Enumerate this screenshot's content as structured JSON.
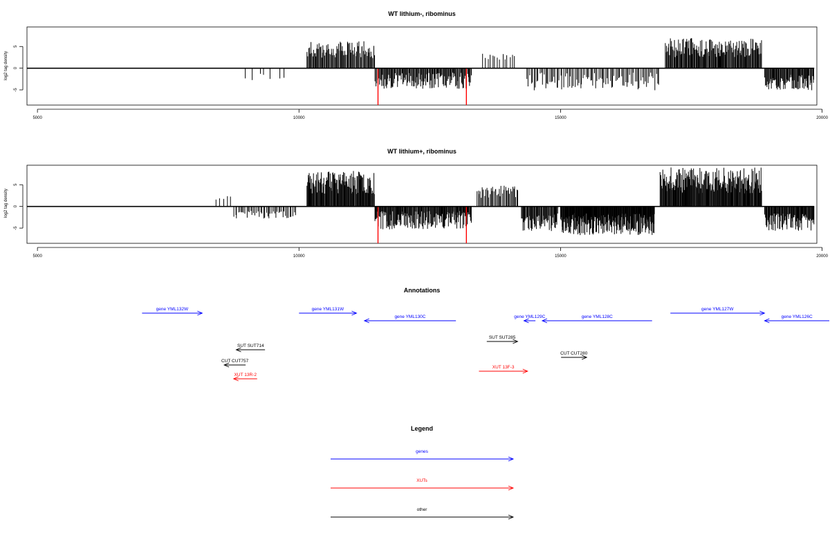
{
  "chart_data": [
    {
      "type": "bar",
      "title": "WT lithium-, ribominus",
      "ylabel": "log2 tag density",
      "xlim": [
        4800,
        19900
      ],
      "ylim": [
        -8.5,
        9.5
      ],
      "xticks": [
        5000,
        10000,
        15000,
        20000
      ],
      "yticks": [
        -5,
        0,
        5
      ],
      "grid": false,
      "baseline": {
        "x": [
          4800,
          19850
        ],
        "y": 0
      },
      "spikes": [
        {
          "x": [
            11510,
            13200
          ],
          "y": -8.5,
          "color": "#ff0000"
        }
      ],
      "segments": [
        {
          "x0": 8950,
          "x1": 9800,
          "n": 7,
          "ymin": -3.5,
          "ymax": -1.0,
          "seed": 11
        },
        {
          "x0": 10150,
          "x1": 11450,
          "n": 85,
          "ymin": 1.0,
          "ymax": 6.2,
          "seed": 12
        },
        {
          "x0": 11450,
          "x1": 13300,
          "n": 130,
          "ymin": -6.0,
          "ymax": -1.0,
          "seed": 13
        },
        {
          "x0": 13500,
          "x1": 14150,
          "n": 14,
          "ymin": 1.0,
          "ymax": 4.5,
          "seed": 14
        },
        {
          "x0": 14350,
          "x1": 16900,
          "n": 95,
          "ymin": -6.5,
          "ymax": -1.0,
          "seed": 15
        },
        {
          "x0": 17000,
          "x1": 18850,
          "n": 140,
          "ymin": 1.0,
          "ymax": 7.0,
          "seed": 16
        },
        {
          "x0": 18900,
          "x1": 19850,
          "n": 75,
          "ymin": -6.3,
          "ymax": -1.5,
          "seed": 17
        }
      ]
    },
    {
      "type": "bar",
      "title": "WT lithium+, ribominus",
      "ylabel": "log2 tag density",
      "xlim": [
        4800,
        19900
      ],
      "ylim": [
        -8.5,
        9.5
      ],
      "xticks": [
        5000,
        10000,
        15000,
        20000
      ],
      "yticks": [
        -5,
        0,
        5
      ],
      "grid": false,
      "baseline": {
        "x": [
          4800,
          19850
        ],
        "y": 0
      },
      "spikes": [
        {
          "x": [
            11510,
            13200
          ],
          "y": -8.5,
          "color": "#ff0000"
        }
      ],
      "segments": [
        {
          "x0": 8400,
          "x1": 8750,
          "n": 5,
          "ymin": 1.0,
          "ymax": 2.5,
          "seed": 21
        },
        {
          "x0": 8750,
          "x1": 9950,
          "n": 45,
          "ymin": -3.5,
          "ymax": -1.0,
          "seed": 22
        },
        {
          "x0": 10150,
          "x1": 11450,
          "n": 120,
          "ymin": 1.0,
          "ymax": 8.2,
          "seed": 23
        },
        {
          "x0": 11450,
          "x1": 13300,
          "n": 160,
          "ymin": -6.8,
          "ymax": -1.0,
          "seed": 24
        },
        {
          "x0": 13400,
          "x1": 14200,
          "n": 40,
          "ymin": 1.0,
          "ymax": 4.8,
          "seed": 25
        },
        {
          "x0": 14250,
          "x1": 14950,
          "n": 55,
          "ymin": -7.5,
          "ymax": -1.0,
          "seed": 26
        },
        {
          "x0": 15000,
          "x1": 16800,
          "n": 230,
          "ymin": -8.3,
          "ymax": -1.5,
          "seed": 27
        },
        {
          "x0": 16900,
          "x1": 18850,
          "n": 190,
          "ymin": 1.0,
          "ymax": 9.0,
          "seed": 28
        },
        {
          "x0": 18900,
          "x1": 19850,
          "n": 85,
          "ymin": -7.0,
          "ymax": -1.5,
          "seed": 29
        }
      ]
    }
  ],
  "annotations": {
    "title": "Annotations",
    "xlim": [
      4800,
      19900
    ],
    "features": [
      {
        "label": "gene YML132W",
        "kind": "gene",
        "color": "#0000ff",
        "start": 7000,
        "end": 8150,
        "dir": "+",
        "row": 0
      },
      {
        "label": "gene YML131W",
        "kind": "gene",
        "color": "#0000ff",
        "start": 10000,
        "end": 11100,
        "dir": "+",
        "row": 0
      },
      {
        "label": "gene YML130C",
        "kind": "gene",
        "color": "#0000ff",
        "start": 11250,
        "end": 13000,
        "dir": "-",
        "row": 1
      },
      {
        "label": "gene YML129C",
        "kind": "gene",
        "color": "#0000ff",
        "start": 14300,
        "end": 14520,
        "dir": "-",
        "row": 1
      },
      {
        "label": "gene YML128C",
        "kind": "gene",
        "color": "#0000ff",
        "start": 14650,
        "end": 16750,
        "dir": "-",
        "row": 1
      },
      {
        "label": "gene YML127W",
        "kind": "gene",
        "color": "#0000ff",
        "start": 17100,
        "end": 18900,
        "dir": "+",
        "row": 0
      },
      {
        "label": "gene YML126C",
        "kind": "gene",
        "color": "#0000ff",
        "start": 18900,
        "end": 21300,
        "dir": "-",
        "row": 1
      },
      {
        "label": "SUT SUT714",
        "kind": "other",
        "color": "#000000",
        "start": 8800,
        "end": 9350,
        "dir": "-",
        "row": 2
      },
      {
        "label": "SUT SUT285",
        "kind": "other",
        "color": "#000000",
        "start": 13590,
        "end": 14180,
        "dir": "+",
        "row": 3
      },
      {
        "label": "CUT CUT757",
        "kind": "other",
        "color": "#000000",
        "start": 8570,
        "end": 8980,
        "dir": "-",
        "row": 4
      },
      {
        "label": "CUT CUT280",
        "kind": "other",
        "color": "#000000",
        "start": 15010,
        "end": 15500,
        "dir": "+",
        "row": 5
      },
      {
        "label": "XUT 13R-2",
        "kind": "xut",
        "color": "#ff0000",
        "start": 8750,
        "end": 9200,
        "dir": "-",
        "row": 6
      },
      {
        "label": "XUT 13F-3",
        "kind": "xut",
        "color": "#ff0000",
        "start": 13440,
        "end": 14370,
        "dir": "+",
        "row": 7
      }
    ]
  },
  "legend": {
    "title": "Legend",
    "items": [
      {
        "label": "genes",
        "color": "#0000ff"
      },
      {
        "label": "XUTs",
        "color": "#ff0000"
      },
      {
        "label": "other",
        "color": "#000000"
      }
    ]
  }
}
